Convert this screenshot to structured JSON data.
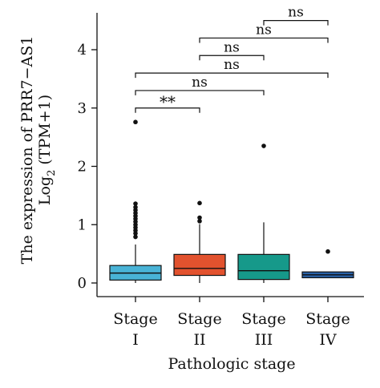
{
  "chart_data": {
    "type": "box",
    "ylabel_main": "The expression of PRR7−AS1",
    "ylabel_sub_prefix": "Log",
    "ylabel_sub_subscript": "2",
    "ylabel_sub_suffix": " (TPM+1)",
    "xlabel": "Pathologic stage",
    "ylim": [
      0,
      4.5
    ],
    "yticks": [
      0,
      1,
      2,
      3,
      4
    ],
    "ytick_labels": [
      "0",
      "1",
      "2",
      "3",
      "4"
    ],
    "categories": [
      {
        "top": "Stage",
        "bottom": "I"
      },
      {
        "top": "Stage",
        "bottom": "II"
      },
      {
        "top": "Stage",
        "bottom": "III"
      },
      {
        "top": "Stage",
        "bottom": "IV"
      }
    ],
    "boxes": [
      {
        "q1": 0.05,
        "median": 0.17,
        "q3": 0.3,
        "whisker_low": 0.0,
        "whisker_high": 0.66,
        "color": "#49b3d6",
        "outliers": [
          0.79,
          0.85,
          0.9,
          0.95,
          1.0,
          1.05,
          1.1,
          1.15,
          1.2,
          1.25,
          1.3,
          1.36,
          2.76
        ]
      },
      {
        "q1": 0.13,
        "median": 0.25,
        "q3": 0.49,
        "whisker_low": 0.0,
        "whisker_high": 1.01,
        "color": "#e2522e",
        "outliers": [
          1.06,
          1.12,
          1.37
        ]
      },
      {
        "q1": 0.06,
        "median": 0.21,
        "q3": 0.49,
        "whisker_low": 0.0,
        "whisker_high": 1.04,
        "color": "#16998a",
        "outliers": [
          2.35
        ]
      },
      {
        "q1": 0.09,
        "median": 0.14,
        "q3": 0.19,
        "whisker_low": 0.09,
        "whisker_high": 0.19,
        "color": "#2a61a6",
        "outliers": [
          0.54
        ]
      }
    ],
    "comparisons": [
      {
        "from": 0,
        "to": 1,
        "y": 3.0,
        "label": "**"
      },
      {
        "from": 0,
        "to": 2,
        "y": 3.3,
        "label": "ns"
      },
      {
        "from": 0,
        "to": 3,
        "y": 3.6,
        "label": "ns"
      },
      {
        "from": 1,
        "to": 2,
        "y": 3.9,
        "label": "ns"
      },
      {
        "from": 1,
        "to": 3,
        "y": 4.2,
        "label": "ns"
      },
      {
        "from": 2,
        "to": 3,
        "y": 4.5,
        "label": "ns"
      }
    ]
  }
}
